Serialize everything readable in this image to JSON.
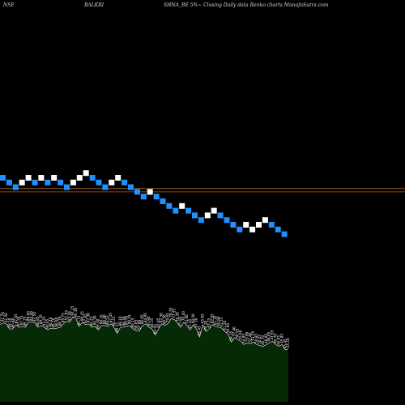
{
  "header": {
    "exchange": "NSE",
    "symbol": "BALKRI",
    "description": "SHNA_BE 5%~  Closing Daily data  Renko  charts MunafaSutra.com"
  },
  "colors": {
    "background": "#000000",
    "up_brick": "#ffffff",
    "down_brick": "#1e90ff",
    "reference_line": "#b5651d",
    "volume_fill": "#062a06",
    "volume_stroke": "#ffffff"
  },
  "chart_data": [
    {
      "type": "renko",
      "title": "",
      "bricks": [
        {
          "dir": "down",
          "level": 0
        },
        {
          "dir": "down",
          "level": -1
        },
        {
          "dir": "down",
          "level": -2
        },
        {
          "dir": "up",
          "level": -1
        },
        {
          "dir": "up",
          "level": 0
        },
        {
          "dir": "down",
          "level": -1
        },
        {
          "dir": "up",
          "level": 0
        },
        {
          "dir": "down",
          "level": -1
        },
        {
          "dir": "up",
          "level": 0
        },
        {
          "dir": "down",
          "level": -1
        },
        {
          "dir": "down",
          "level": -2
        },
        {
          "dir": "up",
          "level": -1
        },
        {
          "dir": "up",
          "level": 0
        },
        {
          "dir": "up",
          "level": 1
        },
        {
          "dir": "down",
          "level": 0
        },
        {
          "dir": "down",
          "level": -1
        },
        {
          "dir": "down",
          "level": -2
        },
        {
          "dir": "up",
          "level": -1
        },
        {
          "dir": "up",
          "level": 0
        },
        {
          "dir": "down",
          "level": -1
        },
        {
          "dir": "down",
          "level": -2
        },
        {
          "dir": "down",
          "level": -3
        },
        {
          "dir": "down",
          "level": -4
        },
        {
          "dir": "up",
          "level": -3
        },
        {
          "dir": "down",
          "level": -4
        },
        {
          "dir": "down",
          "level": -5
        },
        {
          "dir": "down",
          "level": -6
        },
        {
          "dir": "down",
          "level": -7
        },
        {
          "dir": "up",
          "level": -6
        },
        {
          "dir": "down",
          "level": -7
        },
        {
          "dir": "down",
          "level": -8
        },
        {
          "dir": "down",
          "level": -9
        },
        {
          "dir": "up",
          "level": -8
        },
        {
          "dir": "up",
          "level": -7
        },
        {
          "dir": "down",
          "level": -8
        },
        {
          "dir": "down",
          "level": -9
        },
        {
          "dir": "down",
          "level": -10
        },
        {
          "dir": "down",
          "level": -11
        },
        {
          "dir": "up",
          "level": -10
        },
        {
          "dir": "up",
          "level": -11
        },
        {
          "dir": "up",
          "level": -10
        },
        {
          "dir": "up",
          "level": -9
        },
        {
          "dir": "down",
          "level": -10
        },
        {
          "dir": "down",
          "level": -11
        },
        {
          "dir": "down",
          "level": -12
        }
      ],
      "reference_lines": [
        -2.3,
        -3.0
      ]
    },
    {
      "type": "area",
      "values": [
        89,
        91,
        90,
        84,
        84,
        89,
        86,
        87,
        86,
        92,
        92,
        91,
        86,
        88,
        86,
        83,
        85,
        84,
        85,
        86,
        90,
        93,
        92,
        98,
        96,
        87,
        92,
        89,
        90,
        86,
        87,
        83,
        88,
        88,
        87,
        90,
        86,
        79,
        86,
        86,
        87,
        88,
        84,
        82,
        82,
        88,
        90,
        86,
        84,
        77,
        84,
        90,
        88,
        90,
        96,
        95,
        91,
        86,
        92,
        88,
        83,
        89,
        84,
        75,
        89,
        81,
        84,
        89,
        87,
        86,
        85,
        81,
        78,
        69,
        74,
        72,
        70,
        66,
        68,
        67,
        69,
        66,
        65,
        64,
        66,
        68,
        70,
        66,
        64,
        66,
        60,
        61
      ],
      "labels": [
        "91.75",
        "91.70",
        "91.50",
        "89.50",
        "86.80",
        "87.05",
        "87.50",
        "87.15",
        "86.25",
        "86.60",
        "85.40",
        "87.50",
        "88.85",
        "89.70",
        "93.25",
        "90.65",
        "90.40",
        "88.26",
        "86.80",
        "88.78",
        "89.75",
        "91.05",
        "93.35",
        "97.25",
        "95.30",
        "92.75",
        "90.45",
        "87.85",
        "87.30",
        "86.25",
        "84.50",
        "86.50",
        "88.10",
        "88.40",
        "89.52",
        "87.45",
        "90.25",
        "89.55",
        "89.10",
        "88.30",
        "89.95",
        "90.25",
        "89.15",
        "86.85",
        "87.60",
        "86.65",
        "84.95",
        "85.90",
        "86.35",
        "84.95",
        "85.05",
        "82.50",
        "80.50",
        "79.65",
        "78.20",
        "77.55",
        "76.30",
        "75.85",
        "76.40",
        "74.60",
        "72.45",
        "69.50",
        "67.30",
        "66.45",
        "65.85",
        "64.20",
        "63.25",
        "62.95",
        "61.35",
        "60.80",
        "62.55",
        "61.20",
        "59.60",
        "58.35",
        "57.40",
        "56.95",
        "55.60",
        "54.85",
        "53.60",
        "52.40",
        "51.55",
        "50.85",
        "50.05",
        "49.70",
        "48.95",
        "48.05",
        "47.65",
        "46.70",
        "46.05",
        "45.85",
        "45.45",
        "45.10"
      ]
    }
  ]
}
